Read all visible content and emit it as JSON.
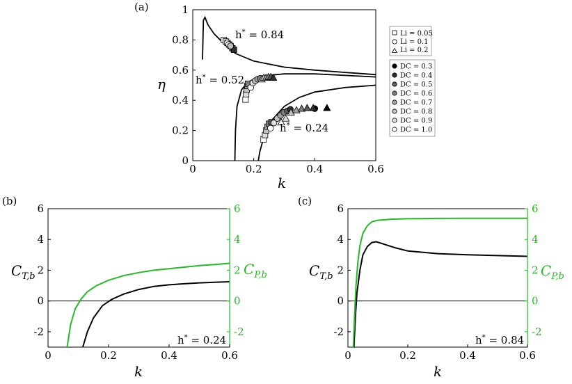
{
  "panels": {
    "a": "(a)",
    "b": "(b)",
    "c": "(c)"
  },
  "chart_data": [
    {
      "panel": "(a)",
      "type": "scatter",
      "xlabel": "k",
      "ylabel": "η",
      "xlim": [
        0,
        0.6
      ],
      "ylim": [
        0,
        1
      ],
      "xticks": [
        "0",
        "0.2",
        "0.4",
        "0.6"
      ],
      "yticks": [
        "0",
        "0.2",
        "0.4",
        "0.6",
        "0.8",
        "1"
      ],
      "annotations": [
        "h* = 0.84",
        "h* = 0.52",
        "h* = 0.24"
      ],
      "legend_shapes": [
        "Li = 0.05",
        "Li = 0.1",
        "Li = 0.2"
      ],
      "legend_dc": [
        "DC = 0.3",
        "DC = 0.4",
        "DC = 0.5",
        "DC = 0.6",
        "DC = 0.7",
        "DC = 0.8",
        "DC = 0.9",
        "DC = 1.0"
      ],
      "legend_placement": "right, outside",
      "dc_colors": [
        "#000000",
        "#2e2e2e",
        "#5a5a5a",
        "#7e7e7e",
        "#a0a0a0",
        "#c0c0c0",
        "#dedede",
        "#ffffff"
      ],
      "curves": [
        {
          "label": "h* = 0.84",
          "points": [
            [
              0.032,
              0.67
            ],
            [
              0.035,
              0.93
            ],
            [
              0.04,
              0.95
            ],
            [
              0.05,
              0.9
            ],
            [
              0.07,
              0.84
            ],
            [
              0.1,
              0.78
            ],
            [
              0.14,
              0.71
            ],
            [
              0.2,
              0.66
            ],
            [
              0.3,
              0.62
            ],
            [
              0.4,
              0.6
            ],
            [
              0.5,
              0.585
            ],
            [
              0.6,
              0.57
            ]
          ]
        },
        {
          "label": "h* = 0.52",
          "points": [
            [
              0.138,
              0.0
            ],
            [
              0.14,
              0.2
            ],
            [
              0.145,
              0.36
            ],
            [
              0.16,
              0.47
            ],
            [
              0.18,
              0.52
            ],
            [
              0.22,
              0.56
            ],
            [
              0.3,
              0.575
            ],
            [
              0.4,
              0.575
            ],
            [
              0.5,
              0.565
            ],
            [
              0.6,
              0.555
            ]
          ]
        },
        {
          "label": "h* = 0.24",
          "points": [
            [
              0.215,
              0.0
            ],
            [
              0.22,
              0.06
            ],
            [
              0.235,
              0.17
            ],
            [
              0.26,
              0.27
            ],
            [
              0.3,
              0.36
            ],
            [
              0.35,
              0.42
            ],
            [
              0.4,
              0.455
            ],
            [
              0.5,
              0.485
            ],
            [
              0.6,
              0.5
            ]
          ]
        }
      ],
      "groups": [
        {
          "shape": "square",
          "points": [
            [
              0.102,
              0.8,
              7
            ],
            [
              0.108,
              0.79,
              6
            ],
            [
              0.114,
              0.78,
              5
            ],
            [
              0.119,
              0.77,
              4
            ],
            [
              0.124,
              0.76,
              3
            ],
            [
              0.13,
              0.745,
              2
            ],
            [
              0.135,
              0.735,
              1
            ]
          ]
        },
        {
          "shape": "circle",
          "points": [
            [
              0.113,
              0.78,
              7
            ],
            [
              0.118,
              0.77,
              6
            ],
            [
              0.124,
              0.76,
              5
            ]
          ]
        },
        {
          "shape": "square",
          "points": [
            [
              0.173,
              0.405,
              7
            ],
            [
              0.175,
              0.44,
              6
            ],
            [
              0.177,
              0.47,
              5
            ],
            [
              0.179,
              0.495,
              4
            ],
            [
              0.181,
              0.51,
              3
            ]
          ]
        },
        {
          "shape": "circle",
          "points": [
            [
              0.19,
              0.485,
              7
            ],
            [
              0.197,
              0.515,
              6
            ],
            [
              0.205,
              0.53,
              5
            ],
            [
              0.213,
              0.54,
              4
            ],
            [
              0.221,
              0.545,
              3
            ]
          ]
        },
        {
          "shape": "triangle",
          "points": [
            [
              0.226,
              0.54,
              6
            ],
            [
              0.233,
              0.55,
              5
            ],
            [
              0.24,
              0.55,
              4
            ],
            [
              0.248,
              0.555,
              3
            ],
            [
              0.256,
              0.555,
              2
            ],
            [
              0.264,
              0.55,
              1
            ]
          ]
        },
        {
          "shape": "square",
          "points": [
            [
              0.232,
              0.14,
              7
            ],
            [
              0.237,
              0.17,
              6
            ],
            [
              0.241,
              0.2,
              5
            ],
            [
              0.245,
              0.225,
              4
            ],
            [
              0.25,
              0.245,
              3
            ],
            [
              0.258,
              0.255,
              2
            ]
          ]
        },
        {
          "shape": "circle",
          "points": [
            [
              0.255,
              0.215,
              7
            ],
            [
              0.266,
              0.25,
              6
            ],
            [
              0.277,
              0.28,
              5
            ],
            [
              0.288,
              0.3,
              4
            ],
            [
              0.299,
              0.32,
              3
            ],
            [
              0.31,
              0.33,
              2
            ],
            [
              0.32,
              0.34,
              1
            ],
            [
              0.4,
              0.345,
              0
            ]
          ]
        },
        {
          "shape": "triangle",
          "points": [
            [
              0.29,
              0.255,
              7
            ],
            [
              0.305,
              0.28,
              6
            ],
            [
              0.322,
              0.32,
              5
            ],
            [
              0.34,
              0.335,
              4
            ],
            [
              0.357,
              0.345,
              3
            ],
            [
              0.375,
              0.35,
              2
            ],
            [
              0.395,
              0.35,
              1
            ],
            [
              0.44,
              0.35,
              0
            ]
          ]
        }
      ]
    },
    {
      "panel": "(b)",
      "type": "line",
      "xlabel": "k",
      "ylabel": "C_T,b",
      "ylabel_right": "C_P,b",
      "xlim": [
        0,
        0.6
      ],
      "ylim": [
        -3,
        6
      ],
      "ylim_right": [
        -3,
        6
      ],
      "xticks": [
        "0",
        "0.2",
        "0.4",
        "0.6"
      ],
      "yticks": [
        "-2",
        "0",
        "2",
        "4",
        "6"
      ],
      "yticks_right": [
        "-2",
        "0",
        "2",
        "4",
        "6"
      ],
      "annotation": "h* = 0.24",
      "colors": {
        "ct": "#000000",
        "cp": "#22bb22"
      },
      "series": [
        {
          "axis": "left",
          "points": [
            [
              0.115,
              -3
            ],
            [
              0.13,
              -2.0
            ],
            [
              0.15,
              -1.1
            ],
            [
              0.18,
              -0.3
            ],
            [
              0.21,
              0.1
            ],
            [
              0.25,
              0.45
            ],
            [
              0.3,
              0.75
            ],
            [
              0.35,
              0.95
            ],
            [
              0.4,
              1.05
            ],
            [
              0.45,
              1.12
            ],
            [
              0.5,
              1.18
            ],
            [
              0.55,
              1.22
            ],
            [
              0.6,
              1.25
            ]
          ]
        },
        {
          "axis": "right",
          "points": [
            [
              0.063,
              -3
            ],
            [
              0.075,
              -1.5
            ],
            [
              0.09,
              -0.5
            ],
            [
              0.11,
              0.15
            ],
            [
              0.13,
              0.6
            ],
            [
              0.16,
              1.0
            ],
            [
              0.2,
              1.35
            ],
            [
              0.25,
              1.65
            ],
            [
              0.3,
              1.85
            ],
            [
              0.35,
              2.0
            ],
            [
              0.4,
              2.1
            ],
            [
              0.45,
              2.2
            ],
            [
              0.5,
              2.3
            ],
            [
              0.55,
              2.37
            ],
            [
              0.6,
              2.45
            ]
          ]
        }
      ]
    },
    {
      "panel": "(c)",
      "type": "line",
      "xlabel": "k",
      "ylabel": "C_T,b",
      "ylabel_right": "C_P,b",
      "xlim": [
        0,
        0.6
      ],
      "ylim": [
        -3,
        6
      ],
      "ylim_right": [
        -3,
        6
      ],
      "xticks": [
        "0",
        "0.2",
        "0.4",
        "0.6"
      ],
      "yticks": [
        "-2",
        "0",
        "2",
        "4",
        "6"
      ],
      "yticks_right": [
        "-2",
        "0",
        "2",
        "4",
        "6"
      ],
      "annotation": "h* = 0.84",
      "colors": {
        "ct": "#000000",
        "cp": "#22bb22"
      },
      "series": [
        {
          "axis": "left",
          "points": [
            [
              0.02,
              -3
            ],
            [
              0.025,
              -1
            ],
            [
              0.03,
              0.5
            ],
            [
              0.04,
              2.0
            ],
            [
              0.05,
              3.0
            ],
            [
              0.065,
              3.55
            ],
            [
              0.08,
              3.8
            ],
            [
              0.095,
              3.85
            ],
            [
              0.12,
              3.7
            ],
            [
              0.16,
              3.45
            ],
            [
              0.2,
              3.25
            ],
            [
              0.3,
              3.08
            ],
            [
              0.4,
              3.0
            ],
            [
              0.5,
              2.95
            ],
            [
              0.6,
              2.9
            ]
          ]
        },
        {
          "axis": "right",
          "points": [
            [
              0.018,
              -3
            ],
            [
              0.022,
              -1
            ],
            [
              0.027,
              1.0
            ],
            [
              0.033,
              2.5
            ],
            [
              0.04,
              3.6
            ],
            [
              0.05,
              4.4
            ],
            [
              0.065,
              4.9
            ],
            [
              0.08,
              5.15
            ],
            [
              0.1,
              5.25
            ],
            [
              0.15,
              5.32
            ],
            [
              0.2,
              5.35
            ],
            [
              0.3,
              5.37
            ],
            [
              0.4,
              5.38
            ],
            [
              0.5,
              5.38
            ],
            [
              0.6,
              5.38
            ]
          ]
        }
      ]
    }
  ]
}
